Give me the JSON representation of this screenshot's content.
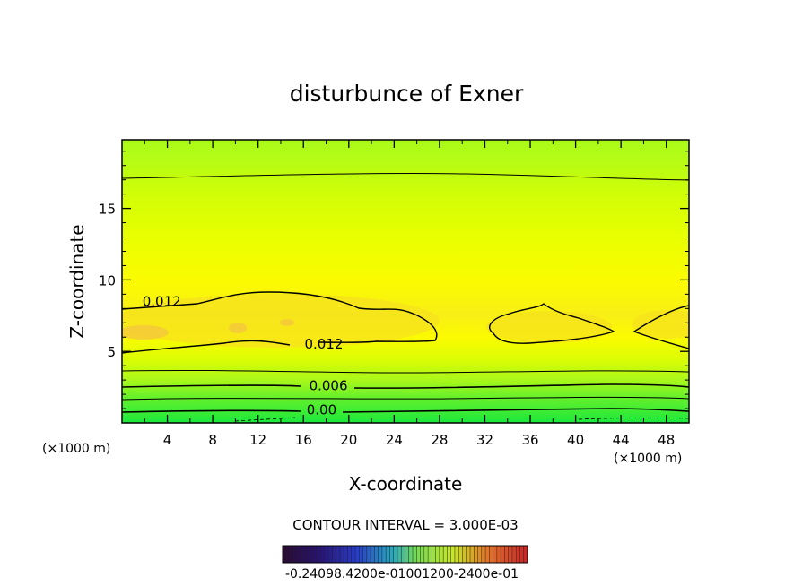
{
  "chart_data": {
    "type": "heatmap",
    "title": "disturbunce of Exner",
    "xlabel": "X-coordinate",
    "ylabel": "Z-coordinate",
    "x_unit_left": "(×1000 m)",
    "x_unit_right": "(×1000 m)",
    "xlim": [
      0,
      50
    ],
    "ylim": [
      0,
      19.8
    ],
    "x_ticks": [
      "4",
      "8",
      "12",
      "16",
      "20",
      "24",
      "28",
      "32",
      "36",
      "40",
      "44",
      "48"
    ],
    "y_ticks": [
      "5",
      "10",
      "15"
    ],
    "contour_interval_text": "CONTOUR INTERVAL = 3.000E-03",
    "contour_labels": [
      {
        "text": "0.012",
        "x": 3.5,
        "z": 8.5
      },
      {
        "text": "0.012",
        "x": 17.8,
        "z": 5.5
      },
      {
        "text": "0.006",
        "x": 18.2,
        "z": 2.6
      },
      {
        "text": "0.00",
        "x": 17.6,
        "z": 0.9
      }
    ],
    "colorbar_labels_text": "-0.24098.4200e-01001200-2400e-01",
    "colorbar_range": [
      -0.024,
      0.024
    ],
    "grid": false
  }
}
